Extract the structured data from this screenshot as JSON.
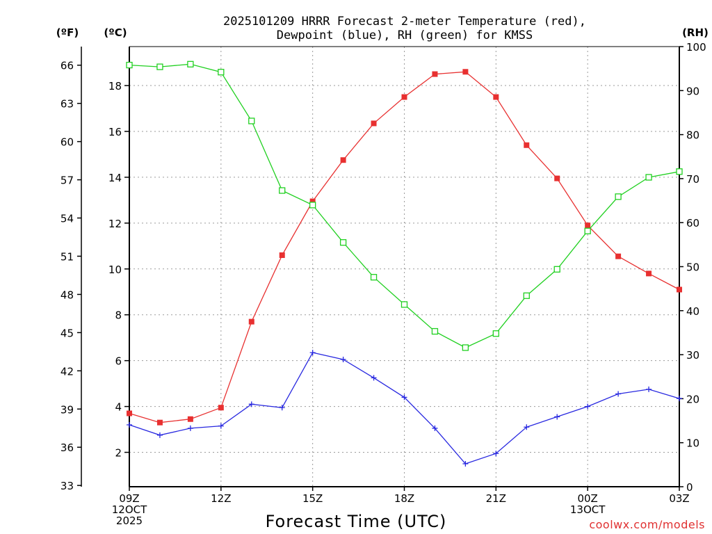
{
  "chart_data": {
    "type": "line",
    "title": [
      "2025101209 HRRR Forecast 2-meter Temperature (red),",
      "Dewpoint (blue), RH (green) for KMSS"
    ],
    "xlabel": "Forecast Time (UTC)",
    "credit": "coolwx.com/models",
    "units": {
      "fahrenheit": "(ºF)",
      "celsius": "(ºC)",
      "rh": "(RH)"
    },
    "x_ticks": [
      {
        "hour": 0,
        "lines": [
          "09Z",
          "12OCT",
          "2025"
        ]
      },
      {
        "hour": 3,
        "lines": [
          "12Z"
        ]
      },
      {
        "hour": 6,
        "lines": [
          "15Z"
        ]
      },
      {
        "hour": 9,
        "lines": [
          "18Z"
        ]
      },
      {
        "hour": 12,
        "lines": [
          "21Z"
        ]
      },
      {
        "hour": 15,
        "lines": [
          "00Z",
          "13OCT"
        ]
      },
      {
        "hour": 18,
        "lines": [
          "03Z"
        ]
      }
    ],
    "xlim": [
      0,
      18
    ],
    "celsius_axis": {
      "ticks": [
        2,
        4,
        6,
        8,
        10,
        12,
        14,
        16,
        18
      ],
      "range": [
        0.5,
        19.7
      ]
    },
    "fahrenheit_axis": {
      "ticks": [
        33,
        36,
        39,
        42,
        45,
        48,
        51,
        54,
        57,
        60,
        63,
        66
      ]
    },
    "rh_axis": {
      "ticks": [
        0,
        10,
        20,
        30,
        40,
        50,
        60,
        70,
        80,
        90,
        100
      ],
      "range": [
        0,
        100
      ]
    },
    "x": [
      0,
      1,
      2,
      3,
      4,
      5,
      6,
      7,
      8,
      9,
      10,
      11,
      12,
      13,
      14,
      15,
      16,
      17,
      18
    ],
    "series": [
      {
        "name": "Temperature",
        "axis": "celsius",
        "color": "#e83030",
        "marker": "filled-square",
        "values": [
          3.7,
          3.3,
          3.45,
          3.95,
          7.7,
          10.6,
          12.95,
          14.75,
          16.35,
          17.5,
          18.5,
          18.6,
          17.5,
          15.4,
          13.95,
          11.9,
          10.55,
          9.8,
          9.1
        ]
      },
      {
        "name": "Dewpoint",
        "axis": "celsius",
        "color": "#2828e0",
        "marker": "plus",
        "values": [
          3.2,
          2.75,
          3.05,
          3.15,
          4.1,
          3.95,
          6.35,
          6.05,
          5.25,
          4.4,
          3.05,
          1.5,
          1.95,
          3.1,
          3.55,
          4.0,
          4.55,
          4.75,
          4.35
        ]
      },
      {
        "name": "RH",
        "axis": "rh",
        "color": "#20d020",
        "marker": "open-square",
        "values": [
          95.8,
          95.4,
          96.0,
          94.2,
          83.1,
          67.3,
          64.0,
          55.5,
          47.6,
          41.4,
          35.3,
          31.6,
          34.8,
          43.4,
          49.4,
          58.1,
          65.9,
          70.3,
          71.6
        ]
      }
    ]
  }
}
